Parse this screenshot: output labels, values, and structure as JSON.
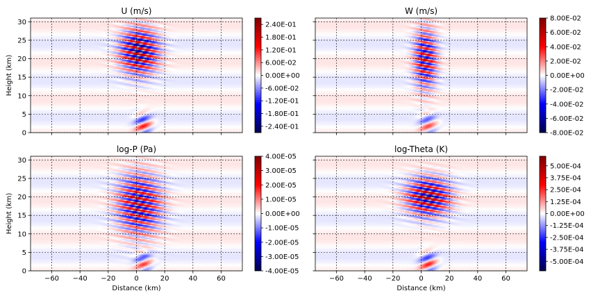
{
  "chart_data": [
    {
      "type": "heatmap",
      "title": "U (m/s)",
      "xlabel": "",
      "ylabel": "Height (km)",
      "xlim": [
        -75,
        75
      ],
      "ylim": [
        0,
        31
      ],
      "xticks": [
        -60,
        -40,
        -20,
        0,
        20,
        40,
        60
      ],
      "yticks": [
        0,
        5,
        10,
        15,
        20,
        25,
        30
      ],
      "xticklabels_shown": false,
      "grid": true,
      "colormap": "seismic",
      "colorbar_range": [
        -0.27,
        0.27
      ],
      "colorbar_ticks": [
        0.24,
        0.18,
        0.12,
        0.06,
        0.0,
        -0.06,
        -0.12,
        -0.18,
        -0.24
      ],
      "colorbar_labels": [
        "2.40E-01",
        "1.80E-01",
        "1.20E-01",
        "6.00E-02",
        "0.00E+00",
        "-6.00E-02",
        "-1.20E-01",
        "-1.80E-01",
        "-2.40E-01"
      ],
      "field": {
        "amplitude": 0.26,
        "center_x_km": 2,
        "center_z_km": 22,
        "width_x_km": 13,
        "depth_z_km": 6,
        "wavelength_z_km": 1.6,
        "tilt": 0.07,
        "xlim_strong": [
          -25,
          25
        ]
      }
    },
    {
      "type": "heatmap",
      "title": "W (m/s)",
      "xlabel": "",
      "ylabel": "",
      "xlim": [
        -75,
        75
      ],
      "ylim": [
        0,
        31
      ],
      "xticks": [
        -60,
        -40,
        -20,
        0,
        20,
        40,
        60
      ],
      "yticks": [
        0,
        5,
        10,
        15,
        20,
        25,
        30
      ],
      "xticklabels_shown": false,
      "grid": true,
      "colormap": "seismic",
      "colorbar_range": [
        -0.08,
        0.08
      ],
      "colorbar_ticks": [
        0.08,
        0.06,
        0.04,
        0.02,
        0.0,
        -0.02,
        -0.04,
        -0.06,
        -0.08
      ],
      "colorbar_labels": [
        "8.00E-02",
        "6.00E-02",
        "4.00E-02",
        "2.00E-02",
        "0.00E+00",
        "-2.00E-02",
        "-4.00E-02",
        "-6.00E-02",
        "-8.00E-02"
      ],
      "field": {
        "amplitude": 0.06,
        "center_x_km": 3,
        "center_z_km": 20,
        "width_x_km": 8,
        "depth_z_km": 8,
        "wavelength_z_km": 1.6,
        "tilt": 0.07,
        "xlim_strong": [
          -15,
          25
        ]
      }
    },
    {
      "type": "heatmap",
      "title": "log-P (Pa)",
      "xlabel": "Distance (km)",
      "ylabel": "Height (km)",
      "xlim": [
        -75,
        75
      ],
      "ylim": [
        0,
        31
      ],
      "xticks": [
        -60,
        -40,
        -20,
        0,
        20,
        40,
        60
      ],
      "yticks": [
        0,
        5,
        10,
        15,
        20,
        25,
        30
      ],
      "xticklabels_shown": true,
      "grid": true,
      "colormap": "seismic",
      "colorbar_range": [
        -4e-05,
        4e-05
      ],
      "colorbar_ticks": [
        4e-05,
        3e-05,
        2e-05,
        1e-05,
        0.0,
        -1e-05,
        -2e-05,
        -3e-05,
        -4e-05
      ],
      "colorbar_labels": [
        "4.00E-05",
        "3.00E-05",
        "2.00E-05",
        "1.00E-05",
        "0.00E+00",
        "-1.00E-05",
        "-2.00E-05",
        "-3.00E-05",
        "-4.00E-05"
      ],
      "field": {
        "amplitude": 3.2e-05,
        "center_x_km": 2,
        "center_z_km": 18,
        "width_x_km": 15,
        "depth_z_km": 8,
        "wavelength_z_km": 1.6,
        "tilt": 0.07,
        "xlim_strong": [
          -30,
          30
        ]
      }
    },
    {
      "type": "heatmap",
      "title": "log-Theta (K)",
      "xlabel": "Distance (km)",
      "ylabel": "",
      "xlim": [
        -75,
        75
      ],
      "ylim": [
        0,
        31
      ],
      "xticks": [
        -60,
        -40,
        -20,
        0,
        20,
        40,
        60
      ],
      "yticks": [
        0,
        5,
        10,
        15,
        20,
        25,
        30
      ],
      "xticklabels_shown": true,
      "grid": true,
      "colormap": "seismic",
      "colorbar_range": [
        -0.0006,
        0.0006
      ],
      "colorbar_ticks": [
        0.0005,
        0.000375,
        0.00025,
        0.000125,
        0.0,
        -0.000125,
        -0.00025,
        -0.000375,
        -0.0005
      ],
      "colorbar_labels": [
        "5.00E-04",
        "3.75E-04",
        "2.50E-04",
        "1.25E-04",
        "0.00E+00",
        "-1.25E-04",
        "-2.50E-04",
        "-3.75E-04",
        "-5.00E-04"
      ],
      "field": {
        "amplitude": 0.00056,
        "center_x_km": 5,
        "center_z_km": 20,
        "width_x_km": 15,
        "depth_z_km": 5,
        "wavelength_z_km": 1.6,
        "tilt": 0.07,
        "xlim_strong": [
          -30,
          25
        ]
      }
    }
  ]
}
